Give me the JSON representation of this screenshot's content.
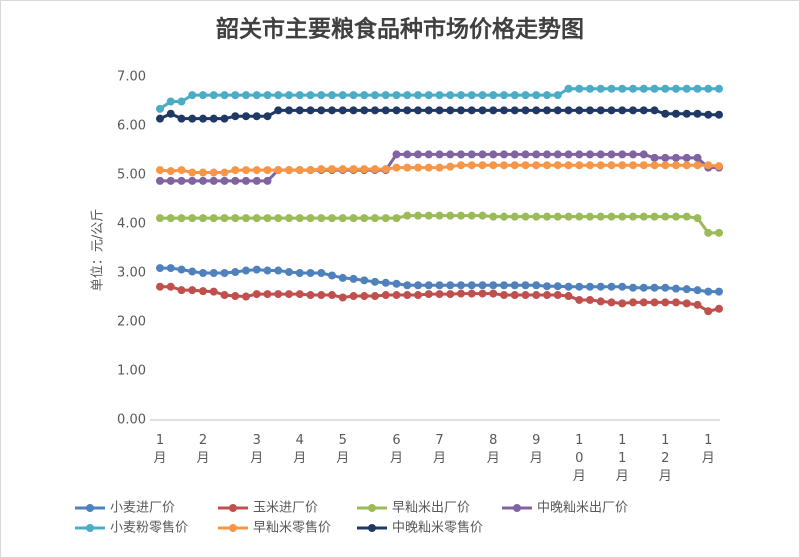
{
  "chart_data": {
    "type": "line",
    "title": "韶关市主要粮食品种市场价格走势图",
    "y_label": "单位：元/公斤",
    "categories": [
      "1月",
      null,
      null,
      null,
      "2月",
      null,
      null,
      null,
      null,
      "3月",
      null,
      null,
      null,
      "4月",
      null,
      null,
      null,
      "5月",
      null,
      null,
      null,
      null,
      "6月",
      null,
      null,
      null,
      "7月",
      null,
      null,
      null,
      null,
      "8月",
      null,
      null,
      null,
      "9月",
      null,
      null,
      null,
      "10月",
      null,
      null,
      null,
      "11月",
      null,
      null,
      null,
      "12月",
      null,
      null,
      null,
      "1月",
      null
    ],
    "ylim": [
      0,
      7
    ],
    "yticks": [
      {
        "value": 0,
        "label": "0.00"
      },
      {
        "value": 1,
        "label": "1.00"
      },
      {
        "value": 2,
        "label": "2.00"
      },
      {
        "value": 3,
        "label": "3.00"
      },
      {
        "value": 4,
        "label": "4.00"
      },
      {
        "value": 5,
        "label": "5.00"
      },
      {
        "value": 6,
        "label": "6.00"
      },
      {
        "value": 7,
        "label": "7.00"
      }
    ],
    "grid": false,
    "series": [
      {
        "name": "小麦进厂价",
        "color": "#4f81bd",
        "values": [
          3.1,
          3.1,
          3.07,
          3.03,
          3.0,
          3.0,
          3.0,
          3.02,
          3.05,
          3.07,
          3.05,
          3.05,
          3.02,
          3.0,
          3.0,
          3.0,
          2.95,
          2.9,
          2.88,
          2.85,
          2.82,
          2.8,
          2.78,
          2.75,
          2.75,
          2.75,
          2.75,
          2.75,
          2.75,
          2.75,
          2.75,
          2.75,
          2.75,
          2.75,
          2.75,
          2.75,
          2.73,
          2.73,
          2.72,
          2.72,
          2.72,
          2.72,
          2.72,
          2.72,
          2.7,
          2.7,
          2.7,
          2.7,
          2.68,
          2.67,
          2.65,
          2.62,
          2.62
        ]
      },
      {
        "name": "玉米进厂价",
        "color": "#c0504d",
        "values": [
          2.72,
          2.72,
          2.65,
          2.65,
          2.63,
          2.62,
          2.55,
          2.53,
          2.52,
          2.57,
          2.57,
          2.57,
          2.57,
          2.57,
          2.55,
          2.55,
          2.55,
          2.5,
          2.53,
          2.53,
          2.53,
          2.55,
          2.55,
          2.55,
          2.55,
          2.57,
          2.57,
          2.57,
          2.58,
          2.58,
          2.58,
          2.58,
          2.55,
          2.55,
          2.55,
          2.55,
          2.55,
          2.55,
          2.53,
          2.45,
          2.45,
          2.42,
          2.4,
          2.38,
          2.4,
          2.4,
          2.4,
          2.4,
          2.4,
          2.38,
          2.35,
          2.22,
          2.27
        ]
      },
      {
        "name": "早籼米出厂价",
        "color": "#9bbb59",
        "values": [
          4.12,
          4.12,
          4.12,
          4.12,
          4.12,
          4.12,
          4.12,
          4.12,
          4.12,
          4.12,
          4.12,
          4.12,
          4.12,
          4.12,
          4.12,
          4.12,
          4.12,
          4.12,
          4.12,
          4.12,
          4.12,
          4.12,
          4.12,
          4.17,
          4.17,
          4.17,
          4.17,
          4.17,
          4.17,
          4.17,
          4.17,
          4.15,
          4.15,
          4.15,
          4.15,
          4.15,
          4.15,
          4.15,
          4.15,
          4.15,
          4.15,
          4.15,
          4.15,
          4.15,
          4.15,
          4.15,
          4.15,
          4.15,
          4.15,
          4.15,
          4.12,
          3.82,
          3.82
        ]
      },
      {
        "name": "中晚籼米出厂价",
        "color": "#8064a2",
        "values": [
          4.88,
          4.88,
          4.88,
          4.88,
          4.88,
          4.88,
          4.88,
          4.88,
          4.88,
          4.88,
          4.88,
          5.1,
          5.1,
          5.1,
          5.1,
          5.1,
          5.1,
          5.1,
          5.1,
          5.1,
          5.1,
          5.1,
          5.42,
          5.42,
          5.42,
          5.42,
          5.42,
          5.42,
          5.42,
          5.42,
          5.42,
          5.42,
          5.42,
          5.42,
          5.42,
          5.42,
          5.42,
          5.42,
          5.42,
          5.42,
          5.42,
          5.42,
          5.42,
          5.42,
          5.42,
          5.42,
          5.35,
          5.35,
          5.35,
          5.35,
          5.35,
          5.15,
          5.15
        ]
      },
      {
        "name": "小麦粉零售价",
        "color": "#4bacc6",
        "values": [
          6.35,
          6.5,
          6.5,
          6.63,
          6.63,
          6.63,
          6.63,
          6.63,
          6.63,
          6.63,
          6.63,
          6.63,
          6.63,
          6.63,
          6.63,
          6.63,
          6.63,
          6.63,
          6.63,
          6.63,
          6.63,
          6.63,
          6.63,
          6.63,
          6.63,
          6.63,
          6.63,
          6.63,
          6.63,
          6.63,
          6.63,
          6.63,
          6.63,
          6.63,
          6.63,
          6.63,
          6.63,
          6.63,
          6.76,
          6.76,
          6.76,
          6.76,
          6.76,
          6.76,
          6.76,
          6.76,
          6.76,
          6.76,
          6.76,
          6.76,
          6.76,
          6.76,
          6.76
        ]
      },
      {
        "name": "早籼米零售价",
        "color": "#f79646",
        "values": [
          5.1,
          5.08,
          5.1,
          5.05,
          5.05,
          5.05,
          5.05,
          5.1,
          5.1,
          5.1,
          5.1,
          5.1,
          5.1,
          5.1,
          5.1,
          5.12,
          5.12,
          5.12,
          5.12,
          5.12,
          5.12,
          5.12,
          5.15,
          5.15,
          5.15,
          5.15,
          5.15,
          5.17,
          5.2,
          5.2,
          5.2,
          5.2,
          5.2,
          5.2,
          5.2,
          5.2,
          5.2,
          5.2,
          5.2,
          5.2,
          5.2,
          5.2,
          5.2,
          5.2,
          5.2,
          5.2,
          5.2,
          5.2,
          5.2,
          5.2,
          5.2,
          5.2,
          5.18
        ]
      },
      {
        "name": "中晚籼米零售价",
        "color": "#1f3864",
        "values": [
          6.15,
          6.25,
          6.15,
          6.15,
          6.15,
          6.15,
          6.15,
          6.2,
          6.2,
          6.2,
          6.2,
          6.32,
          6.32,
          6.32,
          6.32,
          6.32,
          6.32,
          6.32,
          6.32,
          6.32,
          6.32,
          6.32,
          6.32,
          6.32,
          6.32,
          6.32,
          6.32,
          6.32,
          6.32,
          6.32,
          6.32,
          6.32,
          6.32,
          6.32,
          6.32,
          6.32,
          6.32,
          6.32,
          6.32,
          6.32,
          6.32,
          6.32,
          6.32,
          6.32,
          6.32,
          6.32,
          6.32,
          6.25,
          6.25,
          6.25,
          6.25,
          6.23,
          6.23
        ]
      }
    ]
  }
}
